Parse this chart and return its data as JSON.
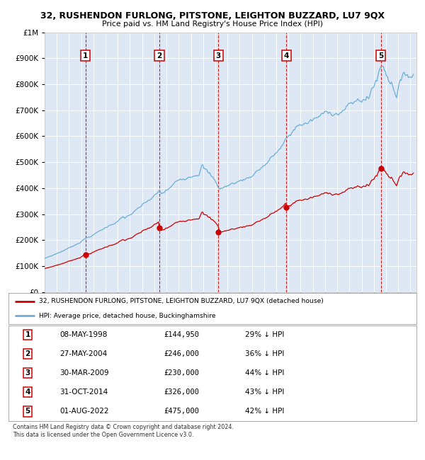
{
  "title": "32, RUSHENDON FURLONG, PITSTONE, LEIGHTON BUZZARD, LU7 9QX",
  "subtitle": "Price paid vs. HM Land Registry's House Price Index (HPI)",
  "bg_color": "#f0f0f0",
  "plot_bg_color": "#dde8f4",
  "legend_line1": "32, RUSHENDON FURLONG, PITSTONE, LEIGHTON BUZZARD, LU7 9QX (detached house)",
  "legend_line2": "HPI: Average price, detached house, Buckinghamshire",
  "footer": "Contains HM Land Registry data © Crown copyright and database right 2024.\nThis data is licensed under the Open Government Licence v3.0.",
  "sale_dates_x": [
    1998.35,
    2004.41,
    2009.25,
    2014.83,
    2022.58
  ],
  "sale_prices_y": [
    144950,
    246000,
    230000,
    326000,
    475000
  ],
  "sale_labels": [
    "1",
    "2",
    "3",
    "4",
    "5"
  ],
  "table_rows": [
    [
      "1",
      "08-MAY-1998",
      "£144,950",
      "29% ↓ HPI"
    ],
    [
      "2",
      "27-MAY-2004",
      "£246,000",
      "36% ↓ HPI"
    ],
    [
      "3",
      "30-MAR-2009",
      "£230,000",
      "44% ↓ HPI"
    ],
    [
      "4",
      "31-OCT-2014",
      "£326,000",
      "43% ↓ HPI"
    ],
    [
      "5",
      "01-AUG-2022",
      "£475,000",
      "42% ↓ HPI"
    ]
  ],
  "hpi_color": "#6baed6",
  "price_color": "#cc0000",
  "xmin": 1995,
  "xmax": 2025.5,
  "ymin": 0,
  "ymax": 1000000,
  "ytick_step": 100000
}
